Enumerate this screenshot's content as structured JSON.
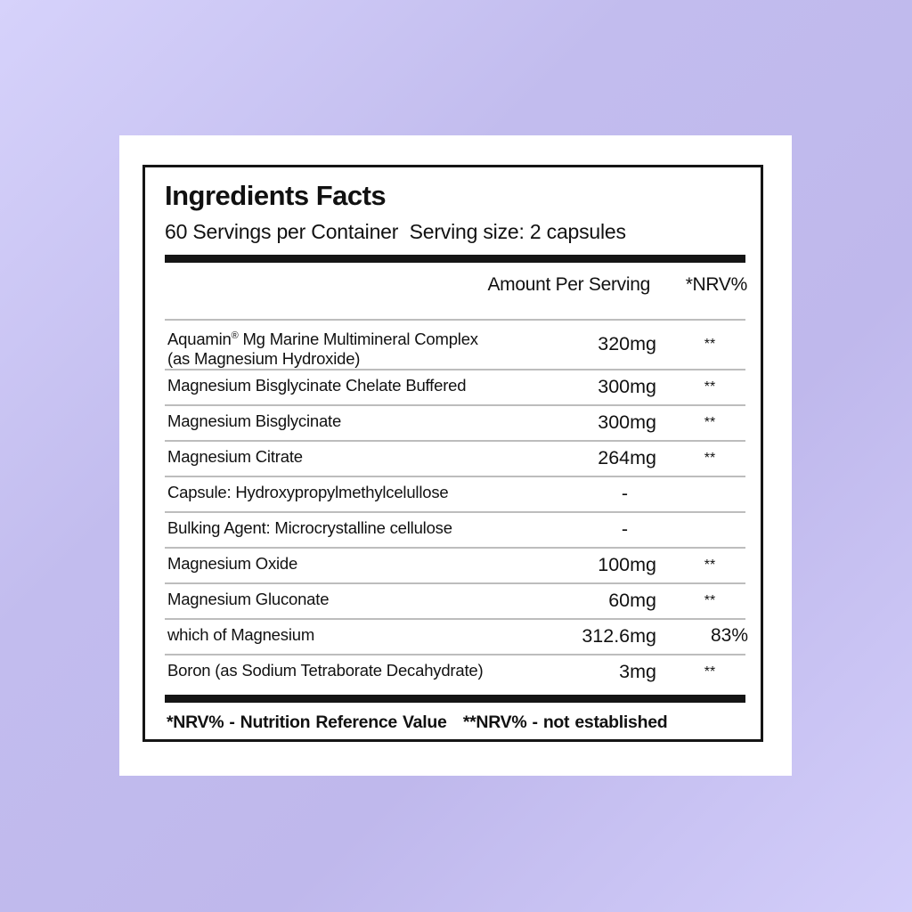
{
  "title": "Ingredients Facts",
  "servings": "60 Servings per Container",
  "serving_size": "Serving size: 2 capsules",
  "headers": {
    "amount": "Amount Per Serving",
    "nrv": "*NRV%"
  },
  "rows": [
    {
      "name": "Aquamin",
      "reg": "®",
      "name_rest": " Mg Marine Multimineral Complex",
      "name_line2": "(as Magnesium Hydroxide)",
      "amount": "320mg",
      "nrv": "**"
    },
    {
      "name": "Magnesium Bisglycinate Chelate Buffered",
      "amount": "300mg",
      "nrv": "**"
    },
    {
      "name": "Magnesium Bisglycinate",
      "amount": "300mg",
      "nrv": "**"
    },
    {
      "name": "Magnesium Citrate",
      "amount": "264mg",
      "nrv": "**"
    },
    {
      "name": "Capsule: Hydroxypropylmethylcelullose",
      "amount": "-",
      "nrv": ""
    },
    {
      "name": "Bulking Agent: Microcrystalline cellulose",
      "amount": "-",
      "nrv": ""
    },
    {
      "name": "Magnesium Oxide",
      "amount": "100mg",
      "nrv": "**"
    },
    {
      "name": "Magnesium Gluconate",
      "amount": "60mg",
      "nrv": "**"
    },
    {
      "name": "which of Magnesium",
      "amount": "312.6mg",
      "nrv": "83%"
    },
    {
      "name": "Boron (as Sodium Tetraborate Decahydrate)",
      "amount": "3mg",
      "nrv": "**"
    }
  ],
  "footer": {
    "nrv_def": "*NRV% - Nutrition Reference Value",
    "nrv_ne": "**NRV% - not established"
  }
}
